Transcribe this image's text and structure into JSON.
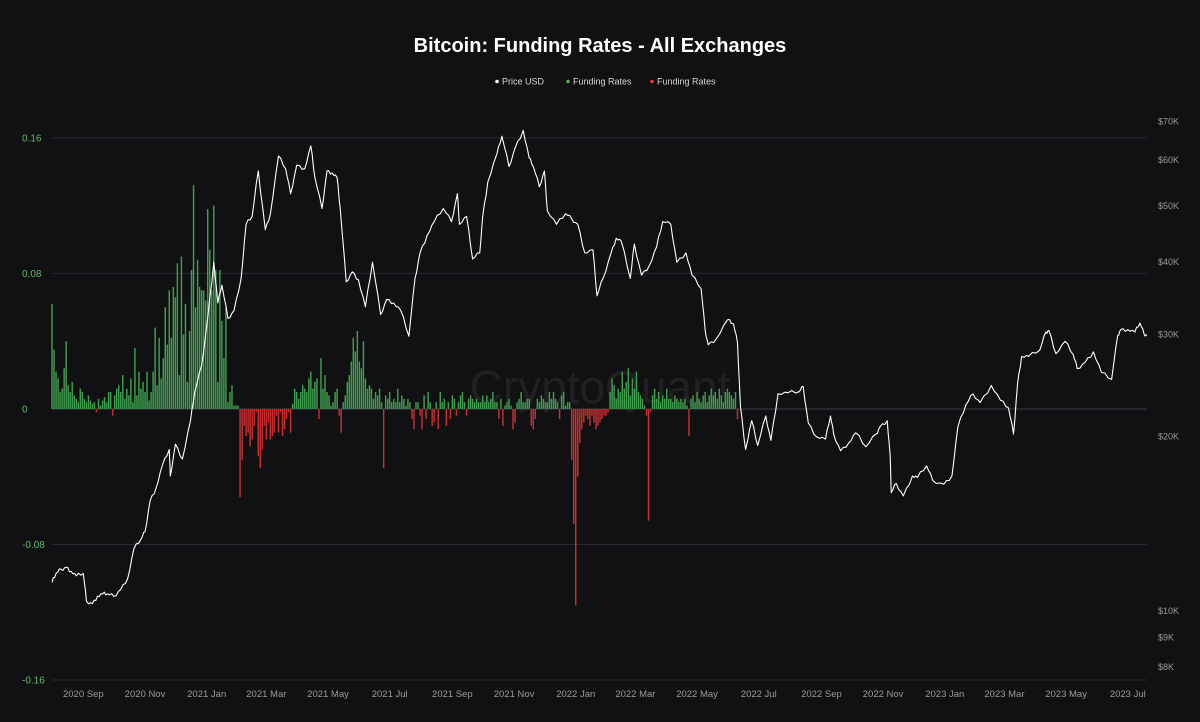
{
  "chart_data": {
    "type": "bar+line",
    "title": "Bitcoin: Funding Rates - All Exchanges",
    "watermark": "CryptoQuant",
    "legend": [
      {
        "label": "Price USD",
        "color": "#ffffff"
      },
      {
        "label": "Funding Rates",
        "color": "#4caf50"
      },
      {
        "label": "Funding Rates",
        "color": "#e53935"
      }
    ],
    "legend_position": "top-center",
    "colors": {
      "background": "#111114",
      "grid": "#2a2a30",
      "positive": "#3f9e4e",
      "negative": "#c62f2f",
      "price": "#ffffff"
    },
    "x_range": [
      "2020-08-01",
      "2023-07-20"
    ],
    "x_ticks": [
      {
        "date": "2020-09-01",
        "label": "2020 Sep"
      },
      {
        "date": "2020-11-01",
        "label": "2020 Nov"
      },
      {
        "date": "2021-01-01",
        "label": "2021 Jan"
      },
      {
        "date": "2021-03-01",
        "label": "2021 Mar"
      },
      {
        "date": "2021-05-01",
        "label": "2021 May"
      },
      {
        "date": "2021-07-01",
        "label": "2021 Jul"
      },
      {
        "date": "2021-09-01",
        "label": "2021 Sep"
      },
      {
        "date": "2021-11-01",
        "label": "2021 Nov"
      },
      {
        "date": "2022-01-01",
        "label": "2022 Jan"
      },
      {
        "date": "2022-03-01",
        "label": "2022 Mar"
      },
      {
        "date": "2022-05-01",
        "label": "2022 May"
      },
      {
        "date": "2022-07-01",
        "label": "2022 Jul"
      },
      {
        "date": "2022-09-01",
        "label": "2022 Sep"
      },
      {
        "date": "2022-11-01",
        "label": "2022 Nov"
      },
      {
        "date": "2023-01-01",
        "label": "2023 Jan"
      },
      {
        "date": "2023-03-01",
        "label": "2023 Mar"
      },
      {
        "date": "2023-05-01",
        "label": "2023 May"
      },
      {
        "date": "2023-07-01",
        "label": "2023 Jul"
      }
    ],
    "y_left": {
      "range": [
        -0.16,
        0.18
      ],
      "ticks": [
        {
          "value": 0.16,
          "label": "0.16"
        },
        {
          "value": 0.08,
          "label": "0.08"
        },
        {
          "value": 0,
          "label": "0"
        },
        {
          "value": -0.08,
          "label": "-0.08"
        },
        {
          "value": -0.16,
          "label": "-0.16"
        }
      ]
    },
    "y_right": {
      "scale": "log",
      "range": [
        7600,
        75000
      ],
      "ticks": [
        {
          "value": 70000,
          "label": "$70K"
        },
        {
          "value": 60000,
          "label": "$60K"
        },
        {
          "value": 50000,
          "label": "$50K"
        },
        {
          "value": 40000,
          "label": "$40K"
        },
        {
          "value": 30000,
          "label": "$30K"
        },
        {
          "value": 20000,
          "label": "$20K"
        },
        {
          "value": 10000,
          "label": "$10K"
        },
        {
          "value": 9000,
          "label": "$9K"
        },
        {
          "value": 8000,
          "label": "$8K"
        }
      ]
    },
    "grid": true,
    "price_series": {
      "name": "Price USD",
      "points": [
        [
          "2020-08-01",
          11200
        ],
        [
          "2020-08-05",
          11600
        ],
        [
          "2020-08-10",
          11800
        ],
        [
          "2020-08-15",
          11900
        ],
        [
          "2020-08-20",
          11700
        ],
        [
          "2020-08-25",
          11500
        ],
        [
          "2020-09-01",
          11600
        ],
        [
          "2020-09-04",
          10400
        ],
        [
          "2020-09-10",
          10300
        ],
        [
          "2020-09-15",
          10600
        ],
        [
          "2020-09-20",
          10700
        ],
        [
          "2020-09-25",
          10700
        ],
        [
          "2020-10-01",
          10600
        ],
        [
          "2020-10-08",
          10900
        ],
        [
          "2020-10-15",
          11400
        ],
        [
          "2020-10-21",
          12800
        ],
        [
          "2020-10-28",
          13300
        ],
        [
          "2020-11-01",
          13700
        ],
        [
          "2020-11-06",
          15500
        ],
        [
          "2020-11-12",
          16300
        ],
        [
          "2020-11-18",
          17800
        ],
        [
          "2020-11-25",
          19000
        ],
        [
          "2020-11-26",
          17100
        ],
        [
          "2020-12-01",
          19400
        ],
        [
          "2020-12-08",
          18300
        ],
        [
          "2020-12-16",
          21300
        ],
        [
          "2020-12-20",
          23800
        ],
        [
          "2020-12-27",
          26500
        ],
        [
          "2021-01-02",
          32000
        ],
        [
          "2021-01-08",
          40000
        ],
        [
          "2021-01-12",
          34000
        ],
        [
          "2021-01-16",
          36500
        ],
        [
          "2021-01-22",
          32000
        ],
        [
          "2021-01-28",
          33000
        ],
        [
          "2021-02-04",
          37500
        ],
        [
          "2021-02-09",
          46500
        ],
        [
          "2021-02-15",
          48000
        ],
        [
          "2021-02-21",
          57500
        ],
        [
          "2021-02-28",
          45500
        ],
        [
          "2021-03-05",
          48500
        ],
        [
          "2021-03-13",
          61000
        ],
        [
          "2021-03-20",
          58000
        ],
        [
          "2021-03-25",
          52500
        ],
        [
          "2021-03-31",
          58800
        ],
        [
          "2021-04-08",
          58000
        ],
        [
          "2021-04-14",
          63500
        ],
        [
          "2021-04-18",
          56000
        ],
        [
          "2021-04-25",
          49500
        ],
        [
          "2021-04-30",
          57500
        ],
        [
          "2021-05-05",
          57000
        ],
        [
          "2021-05-10",
          56000
        ],
        [
          "2021-05-13",
          49500
        ],
        [
          "2021-05-19",
          37000
        ],
        [
          "2021-05-25",
          38500
        ],
        [
          "2021-05-31",
          37300
        ],
        [
          "2021-06-07",
          33500
        ],
        [
          "2021-06-14",
          40000
        ],
        [
          "2021-06-22",
          32500
        ],
        [
          "2021-06-28",
          34500
        ],
        [
          "2021-07-05",
          34000
        ],
        [
          "2021-07-12",
          33000
        ],
        [
          "2021-07-20",
          29800
        ],
        [
          "2021-07-26",
          37500
        ],
        [
          "2021-07-31",
          41500
        ],
        [
          "2021-08-07",
          44500
        ],
        [
          "2021-08-14",
          47000
        ],
        [
          "2021-08-23",
          49500
        ],
        [
          "2021-08-31",
          47000
        ],
        [
          "2021-09-06",
          52500
        ],
        [
          "2021-09-08",
          46500
        ],
        [
          "2021-09-15",
          48000
        ],
        [
          "2021-09-21",
          40500
        ],
        [
          "2021-09-28",
          41500
        ],
        [
          "2021-10-01",
          48000
        ],
        [
          "2021-10-06",
          55000
        ],
        [
          "2021-10-15",
          61500
        ],
        [
          "2021-10-20",
          66000
        ],
        [
          "2021-10-27",
          58500
        ],
        [
          "2021-11-02",
          63000
        ],
        [
          "2021-11-10",
          67500
        ],
        [
          "2021-11-16",
          60500
        ],
        [
          "2021-11-20",
          58500
        ],
        [
          "2021-11-26",
          54000
        ],
        [
          "2021-12-01",
          57500
        ],
        [
          "2021-12-04",
          49000
        ],
        [
          "2021-12-13",
          46500
        ],
        [
          "2021-12-22",
          48500
        ],
        [
          "2021-12-28",
          47500
        ],
        [
          "2022-01-03",
          46500
        ],
        [
          "2022-01-10",
          41500
        ],
        [
          "2022-01-18",
          42000
        ],
        [
          "2022-01-22",
          35000
        ],
        [
          "2022-01-28",
          37500
        ],
        [
          "2022-02-05",
          41500
        ],
        [
          "2022-02-10",
          44000
        ],
        [
          "2022-02-15",
          43500
        ],
        [
          "2022-02-24",
          37500
        ],
        [
          "2022-02-28",
          43000
        ],
        [
          "2022-03-07",
          38000
        ],
        [
          "2022-03-15",
          39500
        ],
        [
          "2022-03-22",
          42500
        ],
        [
          "2022-03-28",
          47000
        ],
        [
          "2022-04-05",
          46500
        ],
        [
          "2022-04-11",
          40000
        ],
        [
          "2022-04-20",
          41500
        ],
        [
          "2022-04-26",
          38000
        ],
        [
          "2022-05-05",
          36000
        ],
        [
          "2022-05-09",
          30500
        ],
        [
          "2022-05-12",
          28800
        ],
        [
          "2022-05-20",
          29500
        ],
        [
          "2022-05-31",
          31800
        ],
        [
          "2022-06-06",
          31300
        ],
        [
          "2022-06-10",
          29000
        ],
        [
          "2022-06-13",
          22500
        ],
        [
          "2022-06-18",
          19000
        ],
        [
          "2022-06-24",
          21300
        ],
        [
          "2022-06-30",
          19300
        ],
        [
          "2022-07-08",
          21700
        ],
        [
          "2022-07-13",
          19700
        ],
        [
          "2022-07-20",
          23700
        ],
        [
          "2022-07-30",
          23800
        ],
        [
          "2022-08-10",
          23900
        ],
        [
          "2022-08-14",
          24400
        ],
        [
          "2022-08-19",
          21100
        ],
        [
          "2022-08-27",
          20000
        ],
        [
          "2022-09-05",
          19800
        ],
        [
          "2022-09-10",
          21700
        ],
        [
          "2022-09-13",
          20200
        ],
        [
          "2022-09-20",
          18900
        ],
        [
          "2022-09-28",
          19500
        ],
        [
          "2022-10-05",
          20300
        ],
        [
          "2022-10-15",
          19200
        ],
        [
          "2022-10-25",
          20200
        ],
        [
          "2022-10-29",
          20800
        ],
        [
          "2022-11-05",
          21300
        ],
        [
          "2022-11-08",
          18500
        ],
        [
          "2022-11-09",
          16000
        ],
        [
          "2022-11-14",
          16600
        ],
        [
          "2022-11-21",
          15800
        ],
        [
          "2022-11-30",
          17100
        ],
        [
          "2022-12-05",
          17000
        ],
        [
          "2022-12-14",
          17800
        ],
        [
          "2022-12-20",
          16800
        ],
        [
          "2022-12-31",
          16550
        ],
        [
          "2023-01-08",
          17100
        ],
        [
          "2023-01-14",
          20800
        ],
        [
          "2023-01-22",
          22700
        ],
        [
          "2023-01-29",
          23700
        ],
        [
          "2023-02-05",
          22900
        ],
        [
          "2023-02-16",
          24500
        ],
        [
          "2023-02-25",
          23100
        ],
        [
          "2023-03-05",
          22400
        ],
        [
          "2023-03-10",
          20200
        ],
        [
          "2023-03-14",
          24700
        ],
        [
          "2023-03-18",
          27500
        ],
        [
          "2023-03-25",
          27500
        ],
        [
          "2023-04-05",
          28200
        ],
        [
          "2023-04-11",
          30300
        ],
        [
          "2023-04-14",
          30500
        ],
        [
          "2023-04-21",
          27800
        ],
        [
          "2023-04-30",
          29200
        ],
        [
          "2023-05-08",
          27700
        ],
        [
          "2023-05-12",
          26200
        ],
        [
          "2023-05-20",
          26900
        ],
        [
          "2023-05-28",
          28000
        ],
        [
          "2023-06-05",
          25800
        ],
        [
          "2023-06-15",
          25100
        ],
        [
          "2023-06-21",
          29900
        ],
        [
          "2023-06-24",
          30600
        ],
        [
          "2023-07-01",
          30600
        ],
        [
          "2023-07-08",
          30300
        ],
        [
          "2023-07-13",
          31400
        ],
        [
          "2023-07-17",
          30100
        ],
        [
          "2023-07-20",
          29900
        ]
      ]
    },
    "funding_rates": {
      "name": "Funding Rates",
      "step_days": 2,
      "start_date": "2020-08-01",
      "values": [
        0.062,
        0.035,
        0.022,
        0.018,
        0.01,
        0.012,
        0.024,
        0.04,
        0.014,
        0.01,
        0.016,
        0.008,
        0.006,
        0.004,
        0.012,
        0.01,
        0.006,
        0.004,
        0.008,
        0.005,
        0.003,
        0.004,
        -0.002,
        0.006,
        0.002,
        0.005,
        0.007,
        0.004,
        0.01,
        0.01,
        -0.004,
        0.008,
        0.012,
        0.014,
        0.01,
        0.02,
        0.006,
        0.012,
        0.008,
        0.018,
        0.004,
        0.036,
        0.008,
        0.022,
        0.012,
        0.016,
        0.01,
        0.022,
        0.005,
        0.01,
        0.022,
        0.048,
        0.014,
        0.042,
        0.018,
        0.03,
        0.06,
        0.038,
        0.07,
        0.042,
        0.072,
        0.066,
        0.086,
        0.02,
        0.09,
        0.044,
        0.062,
        0.016,
        0.046,
        0.082,
        0.132,
        0.06,
        0.088,
        0.072,
        0.07,
        0.07,
        0.064,
        0.118,
        0.094,
        0.07,
        0.12,
        0.082,
        0.016,
        0.082,
        0.052,
        0.03,
        0.06,
        0.004,
        0.01,
        0.014,
        0.002,
        0.002,
        0.002,
        -0.052,
        -0.03,
        -0.01,
        -0.016,
        -0.014,
        -0.022,
        -0.018,
        -0.01,
        -0.002,
        -0.028,
        -0.035,
        -0.024,
        -0.01,
        -0.018,
        -0.008,
        -0.018,
        -0.016,
        -0.014,
        -0.004,
        -0.014,
        -0.002,
        -0.016,
        -0.012,
        -0.006,
        -0.002,
        -0.014,
        0.003,
        0.012,
        0.01,
        0.006,
        0.01,
        0.014,
        0.012,
        0.01,
        0.018,
        0.022,
        0.012,
        0.016,
        0.018,
        -0.006,
        0.03,
        0.012,
        0.02,
        0.01,
        0.008,
        0.002,
        0.004,
        0.01,
        0.012,
        -0.004,
        -0.014,
        0.004,
        0.008,
        0.016,
        0.02,
        0.028,
        0.042,
        0.034,
        0.046,
        0.028,
        0.024,
        0.04,
        0.018,
        0.012,
        0.014,
        0.012,
        0.006,
        0.01,
        0.008,
        0.012,
        0.004,
        -0.035,
        0.008,
        0.006,
        0.01,
        0.004,
        0.006,
        0.004,
        0.012,
        0.004,
        0.008,
        0.006,
        0.002,
        0.006,
        0.004,
        -0.006,
        -0.012,
        0.004,
        0.004,
        -0.004,
        -0.012,
        0.008,
        -0.006,
        0.01,
        0.004,
        -0.01,
        -0.008,
        0.004,
        -0.012,
        0.01,
        0.004,
        0.006,
        -0.01,
        0.004,
        -0.006,
        0.008,
        0.006,
        -0.004,
        0.004,
        0.008,
        0.01,
        0.004,
        -0.004,
        0.006,
        0.008,
        0.006,
        0.004,
        0.006,
        0.004,
        0.004,
        0.008,
        0.004,
        0.008,
        0.004,
        0.006,
        0.01,
        0.004,
        0.004,
        -0.006,
        0.006,
        -0.01,
        0.002,
        0.004,
        0.006,
        0.002,
        -0.012,
        -0.008,
        0.004,
        0.006,
        0.01,
        0.004,
        0.004,
        0.006,
        0.006,
        -0.01,
        -0.012,
        -0.006,
        0.006,
        0.004,
        0.008,
        0.006,
        0.004,
        0.004,
        0.01,
        0.006,
        0.01,
        0.006,
        0.004,
        -0.006,
        0.008,
        0.01,
        0.002,
        0.004,
        0.004,
        -0.03,
        -0.068,
        -0.116,
        -0.04,
        -0.02,
        -0.012,
        -0.008,
        -0.004,
        -0.006,
        -0.01,
        -0.004,
        -0.008,
        -0.012,
        -0.01,
        -0.008,
        -0.006,
        -0.004,
        -0.004,
        -0.002,
        0.01,
        0.018,
        0.014,
        0.006,
        0.012,
        0.01,
        0.022,
        0.012,
        0.016,
        0.024,
        0.008,
        0.018,
        0.012,
        0.022,
        0.01,
        0.008,
        0.006,
        0.002,
        -0.004,
        -0.066,
        -0.002,
        0.008,
        0.012,
        0.006,
        0.01,
        0.004,
        0.008,
        0.006,
        0.012,
        0.006,
        0.006,
        0.004,
        0.008,
        0.006,
        0.004,
        0.006,
        0.004,
        0.006,
        0.002,
        -0.016,
        0.006,
        0.008,
        0.004,
        0.01,
        0.006,
        0.004,
        0.008,
        0.01,
        0.004,
        0.008,
        0.012,
        0.008,
        0.01,
        0.006,
        0.012,
        0.008,
        0.004,
        0.01,
        0.012,
        0.01,
        0.008,
        0.006,
        0.01,
        -0.006
      ]
    }
  }
}
